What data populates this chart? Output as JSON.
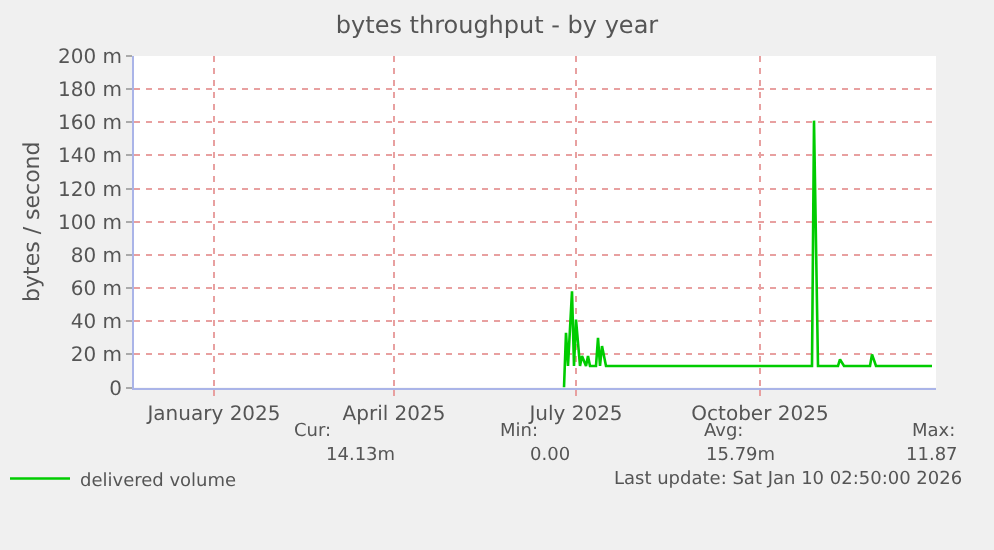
{
  "chart_data": {
    "type": "line",
    "title": "bytes throughput - by year",
    "ylabel": "bytes / second",
    "x": [
      "2025-06-25",
      "2025-06-26",
      "2025-06-27",
      "2025-06-29",
      "2025-06-30",
      "2025-07-01",
      "2025-07-03",
      "2025-07-04",
      "2025-07-06",
      "2025-07-07",
      "2025-07-08",
      "2025-07-11",
      "2025-07-12",
      "2025-07-13",
      "2025-07-14",
      "2025-07-16",
      "2025-10-27",
      "2025-10-28",
      "2025-10-30",
      "2025-11-09",
      "2025-11-10",
      "2025-11-12",
      "2025-11-25",
      "2025-11-26",
      "2025-11-28",
      "2025-12-26"
    ],
    "series": [
      {
        "name": "delivered volume",
        "color": "#00cc00",
        "values": [
          0,
          33,
          13,
          58,
          13,
          41,
          13,
          19,
          13,
          19,
          13,
          13,
          30,
          13,
          25,
          13,
          13,
          161,
          13,
          13,
          17,
          13,
          13,
          20,
          13,
          13
        ]
      }
    ],
    "xlim": [
      "2024-11-22",
      "2025-12-28"
    ],
    "xticks": [
      {
        "value": "2025-01-01",
        "label": "January 2025"
      },
      {
        "value": "2025-04-01",
        "label": "April 2025"
      },
      {
        "value": "2025-07-01",
        "label": "July 2025"
      },
      {
        "value": "2025-10-01",
        "label": "October 2025"
      }
    ],
    "ylim": [
      0,
      200
    ],
    "yticks": [
      0,
      {
        "value": 20,
        "label": "20 m"
      },
      {
        "value": 40,
        "label": "40 m"
      },
      {
        "value": 60,
        "label": "60 m"
      },
      {
        "value": 80,
        "label": "80 m"
      },
      {
        "value": 100,
        "label": "100 m"
      },
      {
        "value": 120,
        "label": "120 m"
      },
      {
        "value": 140,
        "label": "140 m"
      },
      {
        "value": 160,
        "label": "160 m"
      },
      {
        "value": 180,
        "label": "180 m"
      },
      {
        "value": 200,
        "label": "200 m"
      }
    ],
    "grid": true,
    "legend": "bottom left",
    "marker": "none",
    "line_style": "solid",
    "annotations": [
      "Cur:",
      "Min:",
      "Avg:",
      "Max:",
      "14.13m",
      "0.00",
      "15.79m",
      "11.87",
      "Last update: Sat Jan 10 02:50:00 2026"
    ]
  }
}
